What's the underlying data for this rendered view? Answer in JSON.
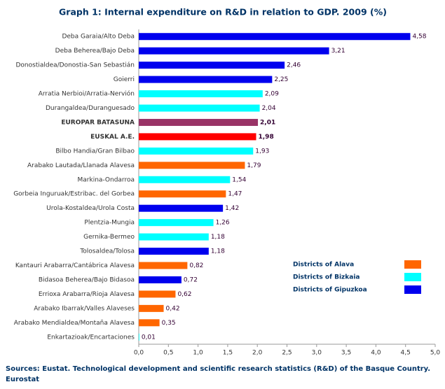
{
  "chart_data": {
    "type": "hbar",
    "title": "Graph 1: Internal expenditure on R&D in relation to GDP. 2009 (%)",
    "categories": [
      "Deba Garaia/Alto Deba",
      "Deba Beherea/Bajo Deba",
      "Donostialdea/Donostia-San Sebastián",
      "Goierri",
      "Arratia Nerbioi/Arratia-Nervión",
      "Durangaldea/Duranguesado",
      "EUROPAR BATASUNA",
      "EUSKAL A.E.",
      "Bilbo Handia/Gran Bilbao",
      "Arabako Lautada/Llanada Alavesa",
      "Markina-Ondarroa",
      "Gorbeia Inguruak/Estribac. del Gorbea",
      "Urola-Kostaldea/Urola Costa",
      "Plentzia-Mungia",
      "Gernika-Bermeo",
      "Tolosaldea/Tolosa",
      "Kantauri Arabarra/Cantábrica Alavesa",
      "Bidasoa Beherea/Bajo Bidasoa",
      "Errioxa Arabarra/Rioja Alavesa",
      "Arabako Ibarrak/Valles Alaveses",
      "Arabako Mendialdea/Montaña Alavesa",
      "Enkartazioak/Encartaciones"
    ],
    "values": [
      4.58,
      3.21,
      2.46,
      2.25,
      2.09,
      2.04,
      2.01,
      1.98,
      1.93,
      1.79,
      1.54,
      1.47,
      1.42,
      1.26,
      1.18,
      1.18,
      0.82,
      0.72,
      0.62,
      0.42,
      0.35,
      0.01
    ],
    "value_labels": [
      "4,58",
      "3,21",
      "2,46",
      "2,25",
      "2,09",
      "2,04",
      "2,01",
      "1,98",
      "1,93",
      "1,79",
      "1,54",
      "1,47",
      "1,42",
      "1,26",
      "1,18",
      "1,18",
      "0,82",
      "0,72",
      "0,62",
      "0,42",
      "0,35",
      "0,01"
    ],
    "colors": [
      "#0000ee",
      "#0000ee",
      "#0000ee",
      "#0000ee",
      "#00ffff",
      "#00ffff",
      "#993366",
      "#ff0000",
      "#00ffff",
      "#ff6600",
      "#00ffff",
      "#ff6600",
      "#0000ee",
      "#00ffff",
      "#00ffff",
      "#0000ee",
      "#ff6600",
      "#0000ee",
      "#ff6600",
      "#ff6600",
      "#ff6600",
      "#00ffff"
    ],
    "legend": [
      {
        "name": "Districts of Alava",
        "color": "#ff6600"
      },
      {
        "name": "Districts of Bizkaia",
        "color": "#00ffff"
      },
      {
        "name": "Districts of Gipuzkoa",
        "color": "#0000ee"
      }
    ],
    "xlim": [
      0,
      5
    ],
    "xticks": [
      {
        "value": 0,
        "label": "0,0"
      },
      {
        "value": 0.5,
        "label": "0,5"
      },
      {
        "value": 1,
        "label": "1,0"
      },
      {
        "value": 1.5,
        "label": "1,5"
      },
      {
        "value": 2,
        "label": "2,0"
      },
      {
        "value": 2.5,
        "label": "2,5"
      },
      {
        "value": 3,
        "label": "3,0"
      },
      {
        "value": 3.5,
        "label": "3,5"
      },
      {
        "value": 4,
        "label": "4,0"
      },
      {
        "value": 4.5,
        "label": "4,5"
      },
      {
        "value": 5,
        "label": "5,0"
      }
    ],
    "source": "Sources: Eustat. Technological development and scientific research statistics (R&D) of the Basque Country. Eurostat"
  }
}
